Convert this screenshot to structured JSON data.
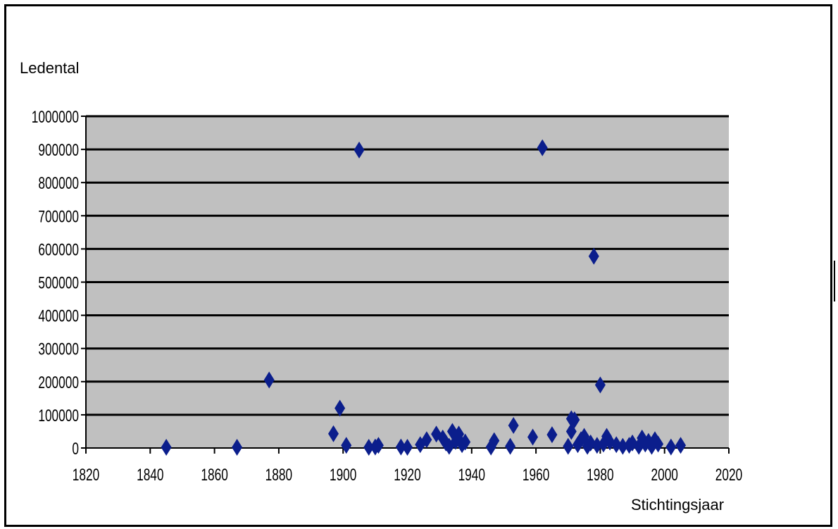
{
  "chart_data": {
    "type": "scatter",
    "ylabel": "Ledental",
    "xlabel": "Stichtingsjaar",
    "xlim": [
      1820,
      2020
    ],
    "ylim": [
      0,
      1000000
    ],
    "xticks": [
      "1820",
      "1840",
      "1860",
      "1880",
      "1900",
      "1920",
      "1940",
      "1960",
      "1980",
      "2000",
      "2020"
    ],
    "yticks": [
      "0",
      "100000",
      "200000",
      "300000",
      "400000",
      "500000",
      "600000",
      "700000",
      "800000",
      "900000",
      "1000000"
    ],
    "grid": true,
    "legend": "none",
    "colors": {
      "marker": "#0b1e8c",
      "plot_bg": "#c0c0c0",
      "grid": "#000000"
    },
    "points": [
      [
        1845,
        2000
      ],
      [
        1867,
        2000
      ],
      [
        1877,
        205000
      ],
      [
        1897,
        43000
      ],
      [
        1899,
        120000
      ],
      [
        1901,
        8000
      ],
      [
        1905,
        898000
      ],
      [
        1908,
        2000
      ],
      [
        1910,
        3000
      ],
      [
        1911,
        8000
      ],
      [
        1918,
        3000
      ],
      [
        1920,
        2000
      ],
      [
        1924,
        10000
      ],
      [
        1926,
        25000
      ],
      [
        1929,
        42000
      ],
      [
        1931,
        30000
      ],
      [
        1932,
        15000
      ],
      [
        1933,
        5000
      ],
      [
        1934,
        50000
      ],
      [
        1935,
        20000
      ],
      [
        1936,
        42000
      ],
      [
        1937,
        10000
      ],
      [
        1938,
        18000
      ],
      [
        1946,
        3000
      ],
      [
        1947,
        22000
      ],
      [
        1952,
        5000
      ],
      [
        1953,
        68000
      ],
      [
        1959,
        33000
      ],
      [
        1962,
        905000
      ],
      [
        1965,
        40000
      ],
      [
        1970,
        5000
      ],
      [
        1971,
        50000
      ],
      [
        1971,
        88000
      ],
      [
        1972,
        85000
      ],
      [
        1973,
        10000
      ],
      [
        1974,
        25000
      ],
      [
        1975,
        35000
      ],
      [
        1976,
        5000
      ],
      [
        1977,
        15000
      ],
      [
        1978,
        578000
      ],
      [
        1979,
        8000
      ],
      [
        1980,
        190000
      ],
      [
        1981,
        12000
      ],
      [
        1982,
        35000
      ],
      [
        1983,
        18000
      ],
      [
        1985,
        10000
      ],
      [
        1987,
        5000
      ],
      [
        1989,
        8000
      ],
      [
        1990,
        15000
      ],
      [
        1992,
        5000
      ],
      [
        1993,
        30000
      ],
      [
        1994,
        12000
      ],
      [
        1995,
        20000
      ],
      [
        1996,
        5000
      ],
      [
        1997,
        25000
      ],
      [
        1998,
        12000
      ],
      [
        2002,
        3000
      ],
      [
        2005,
        8000
      ]
    ]
  }
}
